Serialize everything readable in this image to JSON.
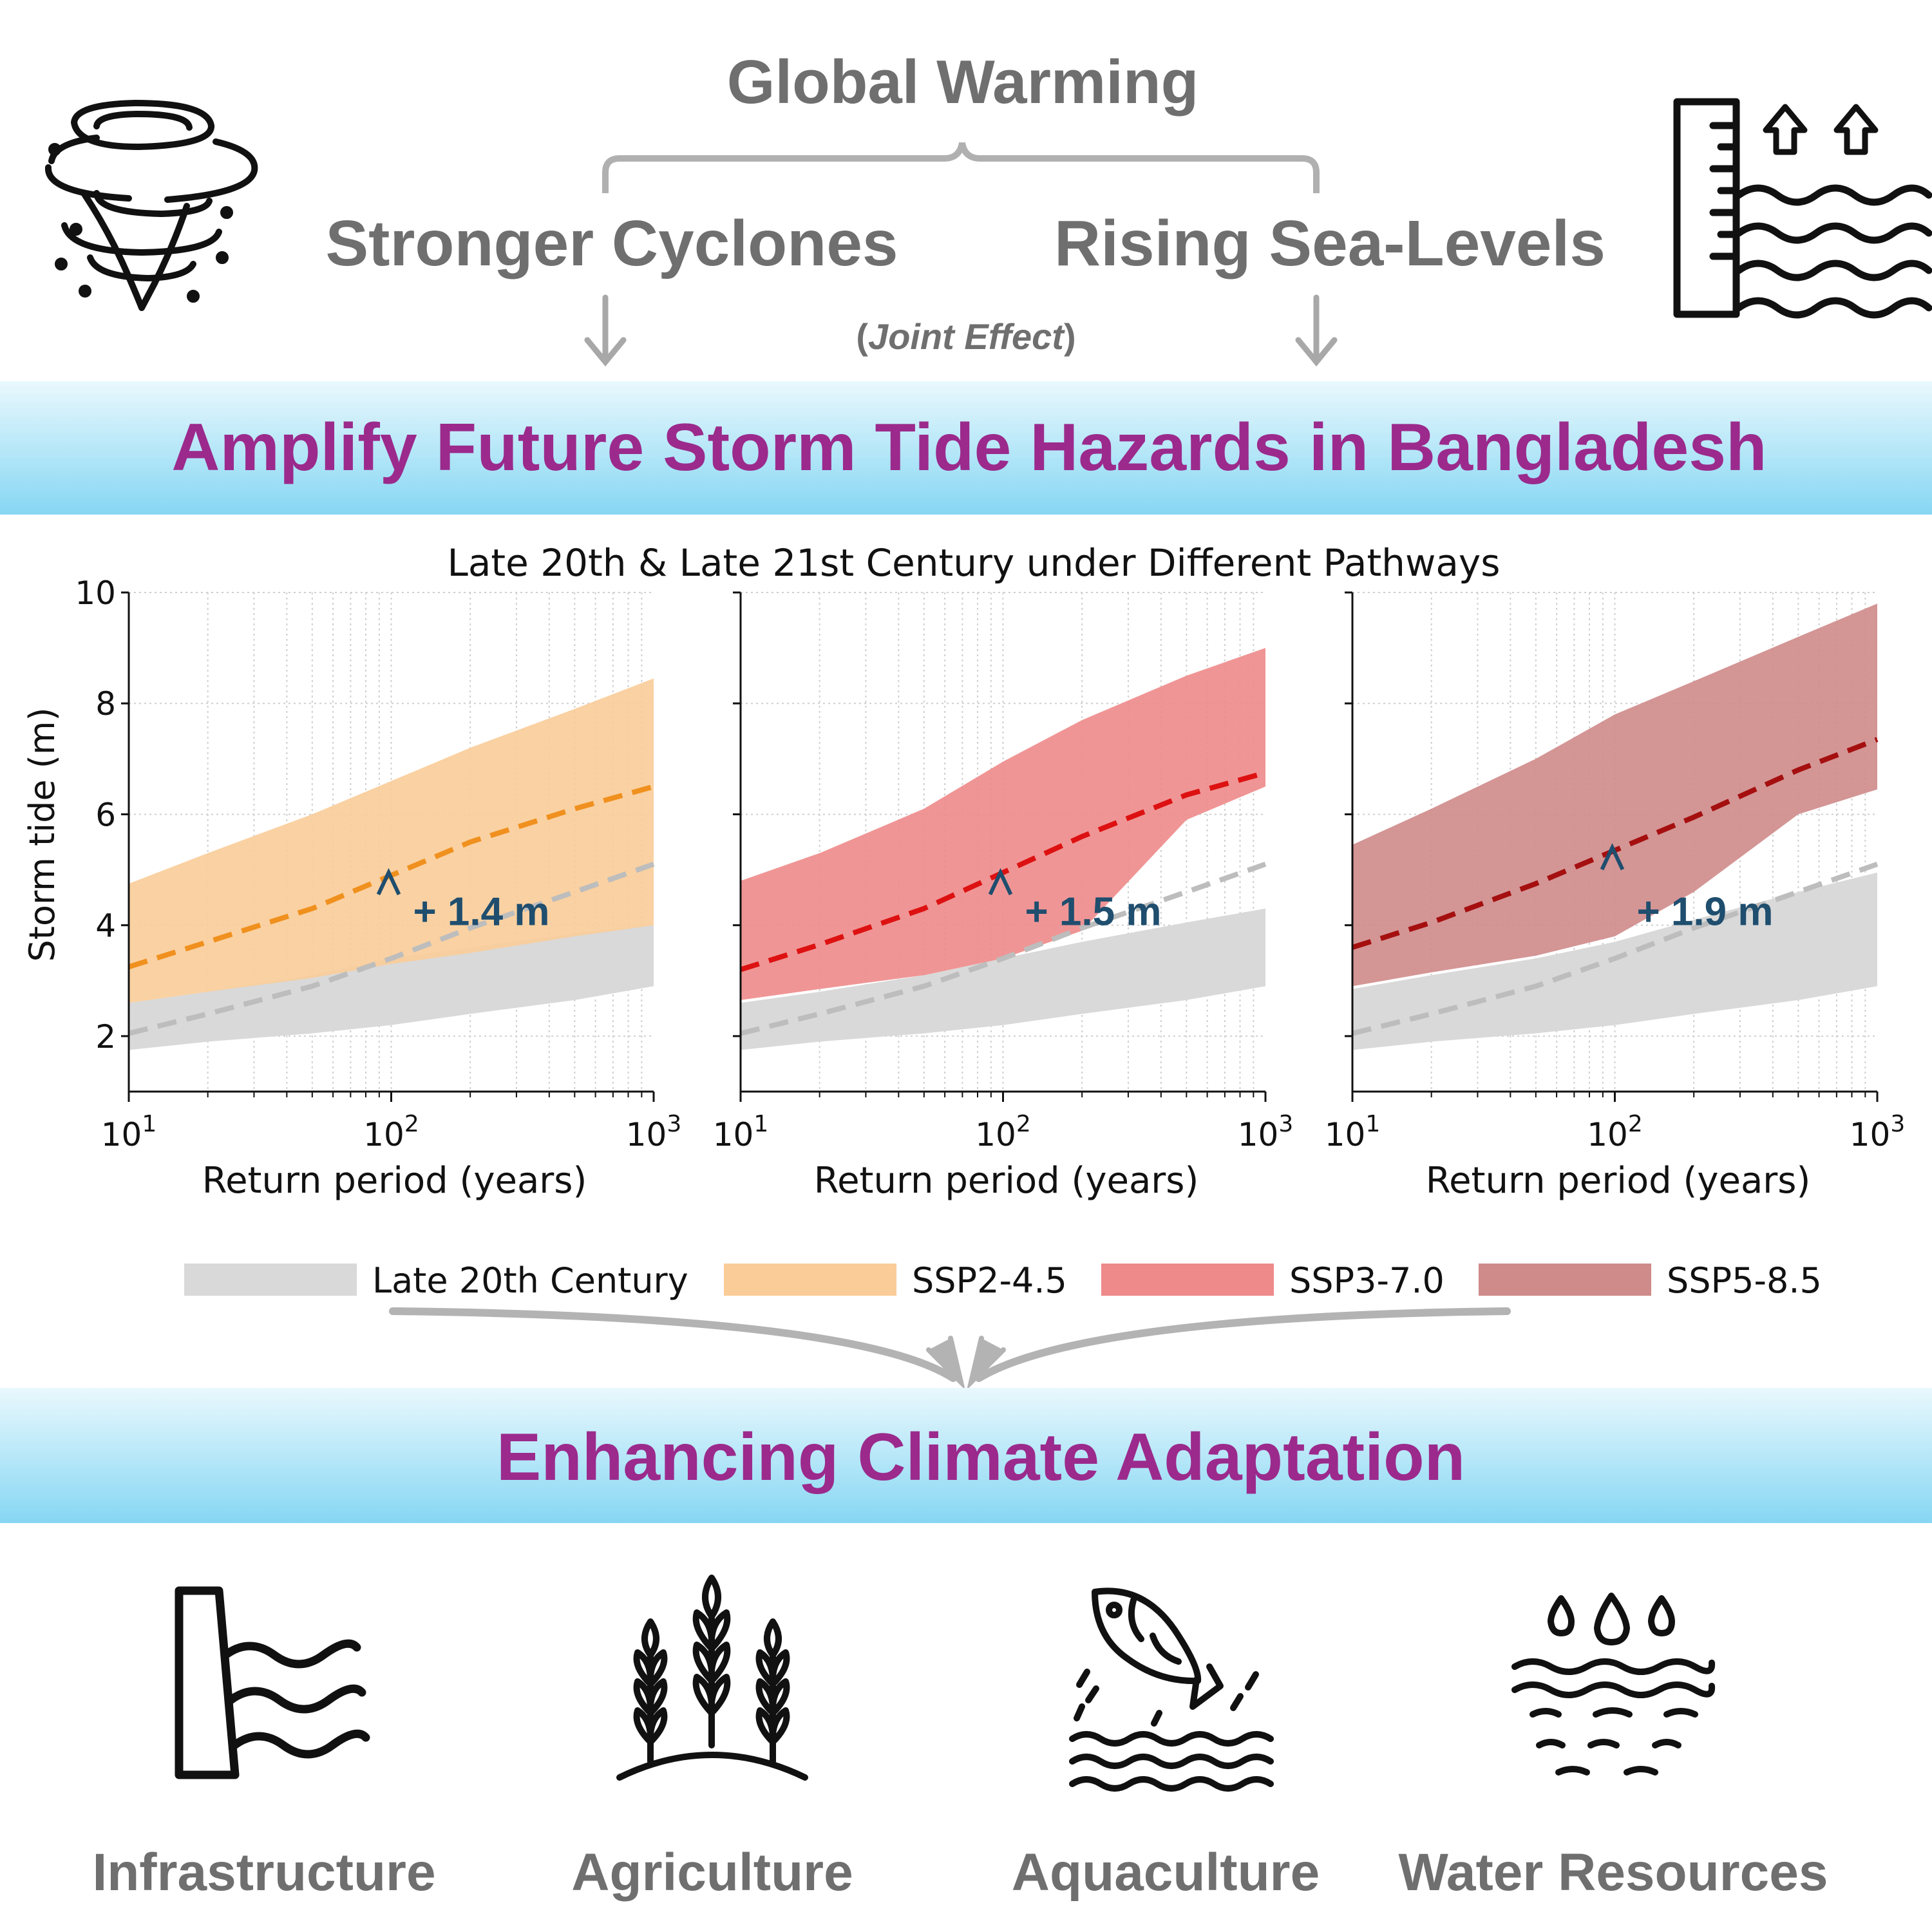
{
  "header": {
    "top_title": "Global Warming",
    "left_cause": "Stronger Cyclones",
    "right_cause": "Rising Sea-Levels",
    "joint_effect_open": "(",
    "joint_effect_text": "Joint Effect",
    "joint_effect_close": ")"
  },
  "banner1": {
    "text": "Amplify Future Storm Tide Hazards in Bangladesh"
  },
  "banner2": {
    "text": "Enhancing Climate Adaptation"
  },
  "figure_title": "Late 20th & Late 21st Century under Different Pathways",
  "axes": {
    "ylabel": "Storm tide (m)",
    "xlabel": "Return period (years)",
    "yticks": [
      "2",
      "4",
      "6",
      "8",
      "10"
    ],
    "xtick_base": "10",
    "xtick_exps": [
      "1",
      "2",
      "3"
    ]
  },
  "legend": [
    {
      "label": "Late 20th Century",
      "color": "#d9d9d9"
    },
    {
      "label": "SSP2-4.5",
      "color": "#f9cc98"
    },
    {
      "label": "SSP3-7.0",
      "color": "#ee8a8a"
    },
    {
      "label": "SSP5-8.5",
      "color": "#cf8a8a"
    }
  ],
  "colors": {
    "gray_text": "#6f6f6f",
    "purple_text": "#9b2a8c",
    "banner": "#8fd9f4",
    "increase_label": "#1f4e6e"
  },
  "chart_data": [
    {
      "type": "area",
      "x_scale": "log",
      "xlim": [
        10,
        1000
      ],
      "ylim": [
        1,
        10
      ],
      "grid": true,
      "baseline": {
        "name": "Late 20th Century",
        "x": [
          10,
          20,
          50,
          100,
          200,
          500,
          1000
        ],
        "lower": [
          1.75,
          1.9,
          2.05,
          2.2,
          2.4,
          2.65,
          2.9
        ],
        "upper": [
          2.6,
          2.8,
          3.1,
          3.4,
          3.6,
          3.85,
          4.0
        ],
        "median": [
          2.05,
          2.4,
          2.9,
          3.4,
          3.95,
          4.6,
          5.1
        ]
      },
      "future": {
        "name": "SSP2-4.5",
        "color": "#f9cc98",
        "line_color": "#f0901e",
        "x": [
          10,
          20,
          50,
          100,
          200,
          500,
          1000
        ],
        "lower": [
          2.6,
          2.8,
          3.05,
          3.3,
          3.5,
          3.8,
          4.0
        ],
        "upper": [
          4.75,
          5.3,
          6.0,
          6.6,
          7.2,
          7.9,
          8.45
        ],
        "median": [
          3.25,
          3.7,
          4.3,
          4.9,
          5.5,
          6.1,
          6.5
        ]
      },
      "annotation": {
        "text": "+ 1.4 m",
        "x": 100,
        "from": 3.5,
        "to": 4.95
      }
    },
    {
      "type": "area",
      "x_scale": "log",
      "xlim": [
        10,
        1000
      ],
      "ylim": [
        1,
        10
      ],
      "grid": true,
      "baseline": {
        "name": "Late 20th Century",
        "x": [
          10,
          20,
          50,
          100,
          200,
          500,
          1000
        ],
        "lower": [
          1.75,
          1.9,
          2.05,
          2.2,
          2.4,
          2.65,
          2.9
        ],
        "upper": [
          2.6,
          2.8,
          3.1,
          3.4,
          3.7,
          4.05,
          4.3
        ],
        "median": [
          2.05,
          2.4,
          2.9,
          3.4,
          3.95,
          4.6,
          5.1
        ]
      },
      "future": {
        "name": "SSP3-7.0",
        "color": "#ee8a8a",
        "line_color": "#dd1111",
        "x": [
          10,
          20,
          50,
          100,
          200,
          500,
          1000
        ],
        "lower": [
          2.65,
          2.85,
          3.1,
          3.4,
          3.9,
          5.9,
          6.5
        ],
        "upper": [
          4.8,
          5.3,
          6.1,
          6.95,
          7.7,
          8.5,
          9.0
        ],
        "median": [
          3.2,
          3.65,
          4.3,
          4.95,
          5.6,
          6.35,
          6.75
        ]
      },
      "annotation": {
        "text": "+ 1.5 m",
        "x": 100,
        "from": 3.45,
        "to": 4.95
      }
    },
    {
      "type": "area",
      "x_scale": "log",
      "xlim": [
        10,
        1000
      ],
      "ylim": [
        1,
        10
      ],
      "grid": true,
      "baseline": {
        "name": "Late 20th Century",
        "x": [
          10,
          20,
          50,
          100,
          200,
          500,
          1000
        ],
        "lower": [
          1.75,
          1.9,
          2.05,
          2.2,
          2.4,
          2.65,
          2.9
        ],
        "upper": [
          2.85,
          3.1,
          3.4,
          3.7,
          4.1,
          4.6,
          4.95
        ],
        "median": [
          2.05,
          2.4,
          2.9,
          3.4,
          3.95,
          4.6,
          5.1
        ]
      },
      "future": {
        "name": "SSP5-8.5",
        "color": "#cf8a8a",
        "line_color": "#a50f0f",
        "x": [
          10,
          20,
          50,
          100,
          200,
          500,
          1000
        ],
        "lower": [
          2.9,
          3.15,
          3.45,
          3.8,
          4.6,
          6.0,
          6.45
        ],
        "upper": [
          5.45,
          6.1,
          7.0,
          7.8,
          8.4,
          9.2,
          9.8
        ],
        "median": [
          3.6,
          4.05,
          4.75,
          5.35,
          5.95,
          6.8,
          7.35
        ]
      },
      "annotation": {
        "text": "+ 1.9 m",
        "x": 100,
        "from": 3.5,
        "to": 5.4
      }
    }
  ],
  "bottom_icons": [
    {
      "label": "Infrastructure",
      "icon": "seawall-icon"
    },
    {
      "label": "Agriculture",
      "icon": "wheat-icon"
    },
    {
      "label": "Aquaculture",
      "icon": "fish-icon"
    },
    {
      "label": "Water Resources",
      "icon": "water-drops-icon"
    }
  ]
}
